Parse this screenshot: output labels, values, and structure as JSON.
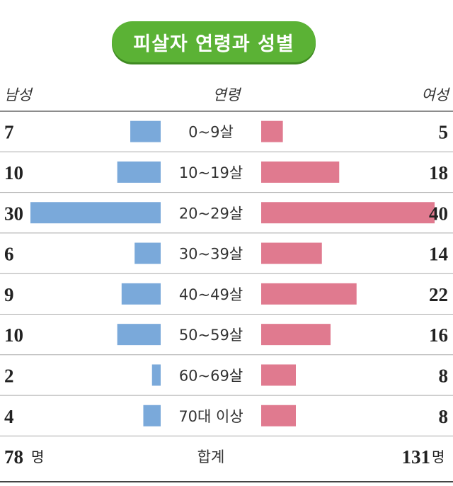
{
  "chart_data": {
    "type": "bar",
    "title": "피살자 연령과 성별",
    "header_left": "남성",
    "header_center": "연령",
    "header_right": "여성",
    "categories": [
      "0~9살",
      "10~19살",
      "20~29살",
      "30~39살",
      "40~49살",
      "50~59살",
      "60~69살",
      "70대 이상"
    ],
    "series": [
      {
        "name": "남성",
        "values": [
          7,
          10,
          30,
          6,
          9,
          10,
          2,
          4
        ]
      },
      {
        "name": "여성",
        "values": [
          5,
          18,
          40,
          14,
          22,
          16,
          8,
          8
        ]
      }
    ],
    "total_label": "합계",
    "male_total": "78",
    "female_total": "131",
    "total_unit": "명",
    "colors": {
      "male": "#7aa9da",
      "female": "#e07a8f",
      "title_bg": "#5bb235",
      "rule": "#888888"
    }
  }
}
